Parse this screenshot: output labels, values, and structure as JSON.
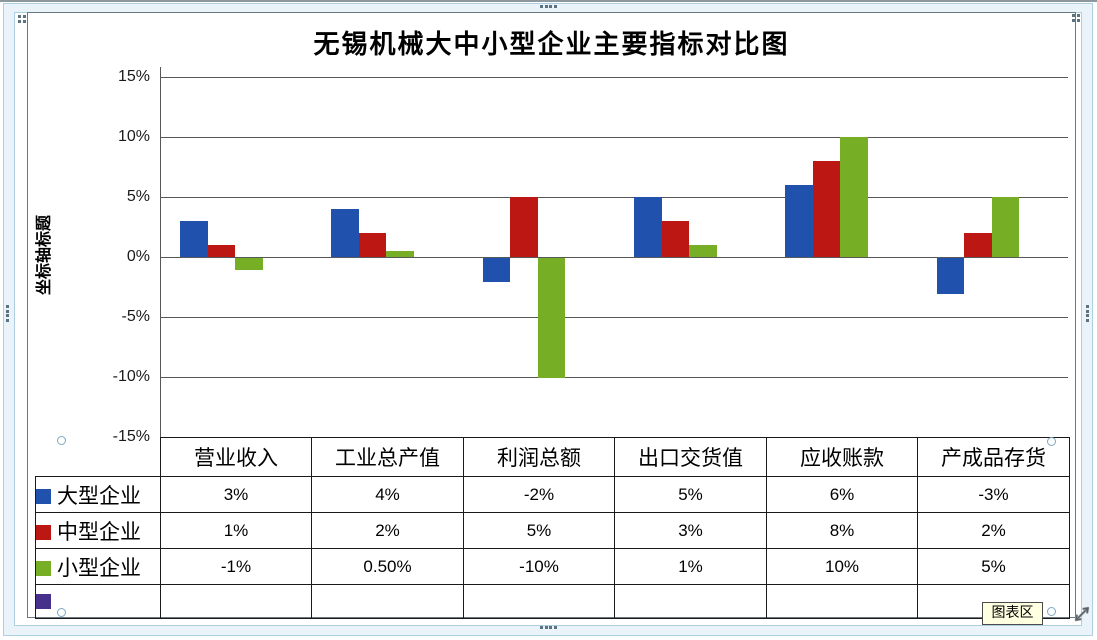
{
  "tooltip_label": "图表区",
  "chart_data": {
    "type": "bar",
    "title": "无锡机械大中小型企业主要指标对比图",
    "ylabel": "坐标轴标题",
    "xlabel": "",
    "categories": [
      "营业收入",
      "工业总产值",
      "利润总额",
      "出口交货值",
      "应收账款",
      "产成品存货"
    ],
    "series": [
      {
        "name": "大型企业",
        "color": "#2051ac",
        "values": [
          3,
          4,
          -2,
          5,
          6,
          -3
        ],
        "labels": [
          "3%",
          "4%",
          "-2%",
          "5%",
          "6%",
          "-3%"
        ]
      },
      {
        "name": "中型企业",
        "color": "#bc1712",
        "values": [
          1,
          2,
          5,
          3,
          8,
          2
        ],
        "labels": [
          "1%",
          "2%",
          "5%",
          "3%",
          "8%",
          "2%"
        ]
      },
      {
        "name": "小型企业",
        "color": "#76ae26",
        "values": [
          -1,
          0.5,
          -10,
          1,
          10,
          5
        ],
        "labels": [
          "-1%",
          "0.50%",
          "-10%",
          "1%",
          "10%",
          "5%"
        ]
      },
      {
        "name": "",
        "color": "#46308c",
        "values": [],
        "labels": [
          "",
          "",
          "",
          "",
          "",
          ""
        ]
      }
    ],
    "y_ticks": [
      {
        "label": "15%",
        "value": 15
      },
      {
        "label": "10%",
        "value": 10
      },
      {
        "label": "5%",
        "value": 5
      },
      {
        "label": "0%",
        "value": 0
      },
      {
        "label": "-5%",
        "value": -5
      },
      {
        "label": "-10%",
        "value": -10
      },
      {
        "label": "-15%",
        "value": -15
      }
    ],
    "ylim": [
      -15,
      15
    ],
    "grid": true,
    "legend_position": "table-left"
  }
}
